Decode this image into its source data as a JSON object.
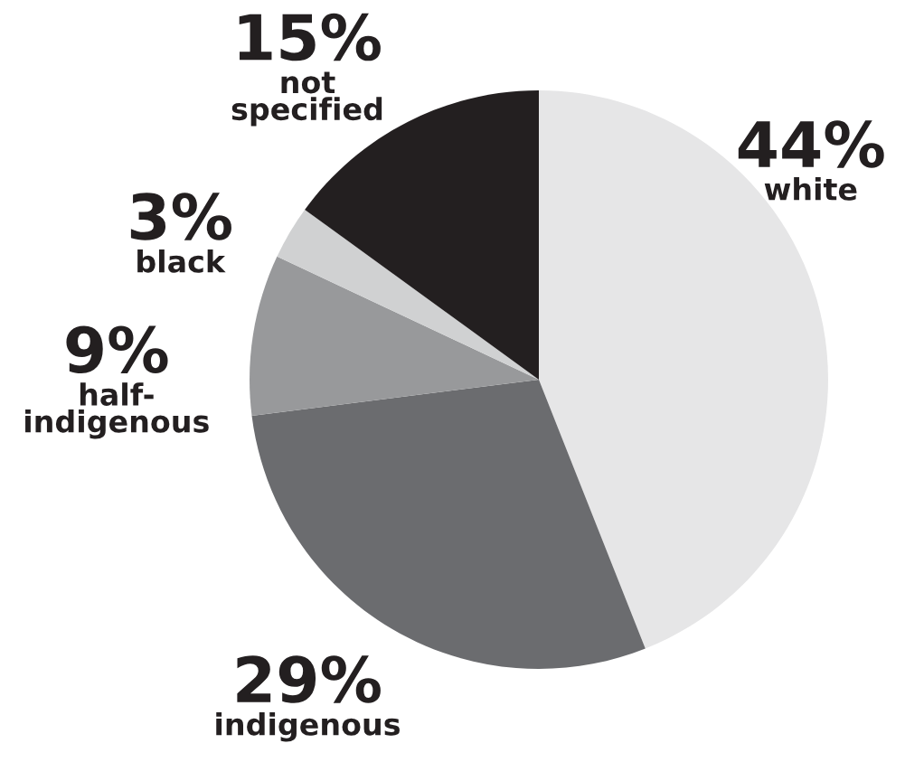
{
  "chart_data": {
    "type": "pie",
    "categories": [
      "white",
      "indigenous",
      "half-\nindigenous",
      "black",
      "not\nspecified"
    ],
    "values": [
      44,
      29,
      9,
      3,
      15
    ],
    "value_labels": [
      "44%",
      "29%",
      "9%",
      "3%",
      "15%"
    ],
    "colors": [
      "#e6e6e7",
      "#6b6c6f",
      "#98999b",
      "#d0d1d2",
      "#231f20"
    ]
  }
}
